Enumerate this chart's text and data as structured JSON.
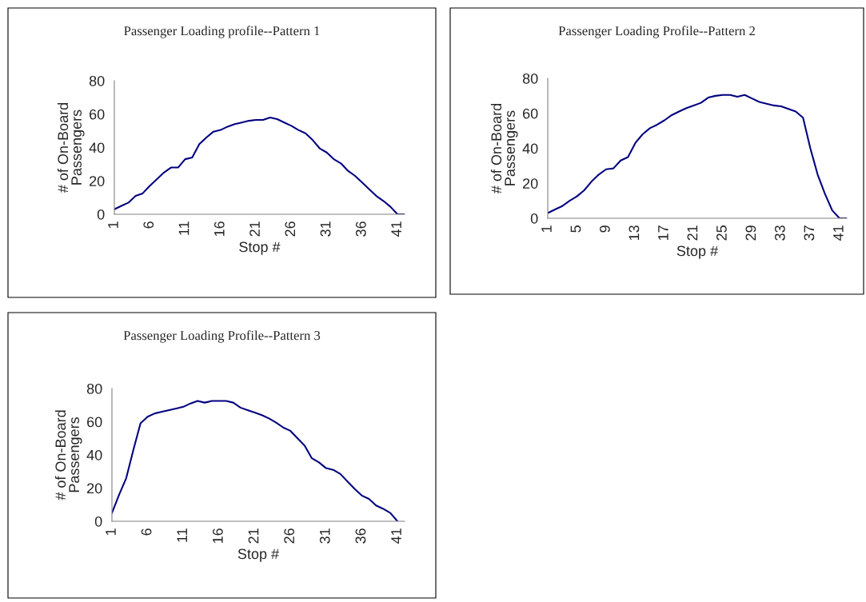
{
  "chart_data": [
    {
      "type": "line",
      "title": "Passenger Loading profile--Pattern 1",
      "xlabel": "Stop #",
      "ylabel": "# of On-Board\nPassengers",
      "categories": [
        "1",
        null,
        null,
        null,
        null,
        "6",
        null,
        null,
        null,
        null,
        "11",
        null,
        null,
        null,
        null,
        "16",
        null,
        null,
        null,
        null,
        "21",
        null,
        null,
        null,
        null,
        "26",
        null,
        null,
        null,
        null,
        "31",
        null,
        null,
        null,
        null,
        "36",
        null,
        null,
        null,
        null,
        "41",
        null
      ],
      "series": [
        {
          "color": "#000080",
          "values": [
            3,
            5,
            7,
            11,
            12.5,
            17,
            21,
            25,
            28,
            28,
            33,
            34,
            42,
            46,
            49.5,
            50.5,
            52.5,
            54,
            55,
            56,
            56.5,
            56.5,
            58,
            57,
            55,
            53,
            50.5,
            48.5,
            44.5,
            39.5,
            37,
            33,
            30.5,
            26,
            23,
            19,
            15,
            11,
            8,
            4.5,
            0,
            0
          ]
        }
      ],
      "ylim": [
        0,
        80
      ],
      "yticks": [
        0,
        20,
        40,
        60,
        80
      ]
    },
    {
      "type": "line",
      "title": "Passenger Loading Profile--Pattern 2",
      "xlabel": "Stop #",
      "ylabel": "# of On-Board\nPassengers",
      "categories": [
        "1",
        null,
        null,
        null,
        "5",
        null,
        null,
        null,
        "9",
        null,
        null,
        null,
        "13",
        null,
        null,
        null,
        "17",
        null,
        null,
        null,
        "21",
        null,
        null,
        null,
        "25",
        null,
        null,
        null,
        "29",
        null,
        null,
        null,
        "33",
        null,
        null,
        null,
        "37",
        null,
        null,
        null,
        "41",
        null
      ],
      "series": [
        {
          "color": "#000080",
          "values": [
            3,
            5,
            7,
            10,
            12.5,
            16,
            21,
            25,
            28,
            28.5,
            33,
            35,
            43,
            48,
            51.5,
            53.5,
            56,
            59,
            61,
            63,
            64.5,
            66,
            69,
            70,
            70.5,
            70.5,
            69.5,
            70.5,
            68.5,
            66.5,
            65.5,
            64.5,
            64,
            62.5,
            61,
            57.5,
            40,
            25,
            14,
            4.5,
            0,
            0
          ]
        }
      ],
      "ylim": [
        0,
        80
      ],
      "yticks": [
        0,
        20,
        40,
        60,
        80
      ]
    },
    {
      "type": "line",
      "title": "Passenger Loading Profile--Pattern 3",
      "xlabel": "Stop #",
      "ylabel": "# of On-Board\nPassengers",
      "categories": [
        "1",
        null,
        null,
        null,
        null,
        "6",
        null,
        null,
        null,
        null,
        "11",
        null,
        null,
        null,
        null,
        "16",
        null,
        null,
        null,
        null,
        "21",
        null,
        null,
        null,
        null,
        "26",
        null,
        null,
        null,
        null,
        "31",
        null,
        null,
        null,
        null,
        "36",
        null,
        null,
        null,
        null,
        "41",
        null
      ],
      "series": [
        {
          "color": "#000080",
          "values": [
            5,
            16,
            26,
            43,
            59,
            63,
            65,
            66,
            67,
            68,
            69,
            71,
            72.5,
            71.5,
            72.5,
            72.5,
            72.5,
            71.5,
            68.5,
            67,
            65.5,
            64,
            62,
            59.5,
            56.5,
            54.5,
            50,
            45.5,
            38,
            35.5,
            32,
            31,
            28.5,
            24,
            19.5,
            15.5,
            13.5,
            9.5,
            7.5,
            5,
            0,
            null
          ]
        }
      ],
      "ylim": [
        0,
        80
      ],
      "yticks": [
        0,
        20,
        40,
        60,
        80
      ]
    }
  ]
}
